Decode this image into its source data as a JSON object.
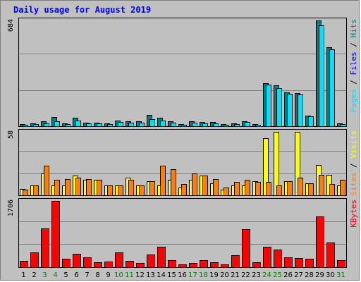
{
  "chart_data": {
    "type": "bar",
    "title": "Daily usage for August 2019",
    "categories": [
      "1",
      "2",
      "3",
      "4",
      "5",
      "6",
      "7",
      "8",
      "9",
      "10",
      "11",
      "12",
      "13",
      "14",
      "15",
      "16",
      "17",
      "18",
      "19",
      "20",
      "21",
      "22",
      "23",
      "24",
      "25",
      "26",
      "27",
      "28",
      "29",
      "30",
      "31"
    ],
    "weekend_days": [
      "3",
      "4",
      "10",
      "11",
      "17",
      "18",
      "24",
      "25",
      "31"
    ],
    "panels": [
      {
        "id": "pages-files-hits",
        "max_label": "684",
        "ylim": [
          0,
          684
        ],
        "grid": true,
        "side_label": [
          {
            "text": "Pages",
            "color": "#00e0ff"
          },
          {
            "text": " / ",
            "color": "#000000"
          },
          {
            "text": "Files",
            "color": "#0000ff"
          },
          {
            "text": " / ",
            "color": "#000000"
          },
          {
            "text": "Hits",
            "color": "#008080"
          }
        ],
        "series": [
          {
            "name": "Hits",
            "color": "#008080",
            "values": [
              14,
              20,
              34,
              61,
              18,
              54,
              24,
              24,
              18,
              38,
              32,
              32,
              74,
              54,
              30,
              14,
              30,
              26,
              26,
              14,
              18,
              34,
              14,
              278,
              264,
              220,
              214,
              70,
              684,
              512,
              18
            ]
          },
          {
            "name": "Files",
            "color": "#00e0ff",
            "values": [
              10,
              14,
              20,
              30,
              14,
              36,
              18,
              18,
              12,
              26,
              22,
              22,
              44,
              36,
              22,
              10,
              22,
              20,
              20,
              10,
              12,
              26,
              10,
              270,
              248,
              208,
              206,
              66,
              654,
              498,
              12
            ]
          }
        ]
      },
      {
        "id": "visits-sites",
        "max_label": "58",
        "ylim": [
          0,
          58
        ],
        "grid": true,
        "side_label": [
          {
            "text": "Sites",
            "color": "#ff8000"
          },
          {
            "text": " / ",
            "color": "#000000"
          },
          {
            "text": "Visits",
            "color": "#ffff00"
          }
        ],
        "series": [
          {
            "name": "Visits",
            "color": "#ffff00",
            "values": [
              6,
              9,
              20,
              9,
              9,
              18,
              14,
              14,
              9,
              9,
              16,
              9,
              13,
              9,
              14,
              7,
              14,
              18,
              11,
              5,
              9,
              9,
              13,
              52,
              58,
              13,
              58,
              11,
              28,
              19,
              9
            ]
          },
          {
            "name": "Sites",
            "color": "#ff8000",
            "values": [
              5,
              9,
              27,
              14,
              15,
              16,
              15,
              14,
              9,
              9,
              14,
              9,
              13,
              27,
              24,
              10,
              20,
              18,
              15,
              7,
              12,
              14,
              12,
              12,
              9,
              13,
              16,
              11,
              19,
              10,
              14
            ]
          }
        ]
      },
      {
        "id": "kbytes",
        "max_label": "1706",
        "ylim": [
          0,
          1706
        ],
        "grid": true,
        "side_label": [
          {
            "text": "KBytes",
            "color": "#ff0000"
          }
        ],
        "series": [
          {
            "name": "KBytes",
            "color": "#ff0000",
            "values": [
              160,
              380,
              1000,
              1706,
              220,
              340,
              250,
              120,
              150,
              380,
              160,
              100,
              330,
              530,
              180,
              70,
              110,
              180,
              120,
              80,
              310,
              980,
              120,
              520,
              450,
              250,
              240,
              220,
              1300,
              630,
              190
            ]
          }
        ]
      }
    ]
  }
}
